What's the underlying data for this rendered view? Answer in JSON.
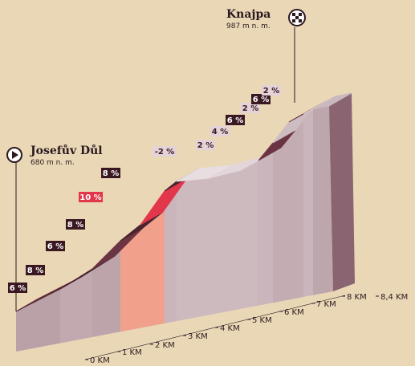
{
  "start": {
    "name": "Josefův Důl",
    "elevation": "680 m n. m."
  },
  "finish": {
    "name": "Knajpa",
    "elevation": "987 m n. m."
  },
  "gradients": [
    "6 %",
    "8 %",
    "6 %",
    "8 %",
    "10 %",
    "8 %",
    "-2 %",
    "2 %",
    "4 %",
    "6 %",
    "2 %",
    "6 %",
    "2 %"
  ],
  "distances": [
    "0 KM",
    "1 KM",
    "2 KM",
    "3 KM",
    "4 KM",
    "5 KM",
    "6 KM",
    "7 KM",
    "8 KM",
    "8,4 KM"
  ]
}
